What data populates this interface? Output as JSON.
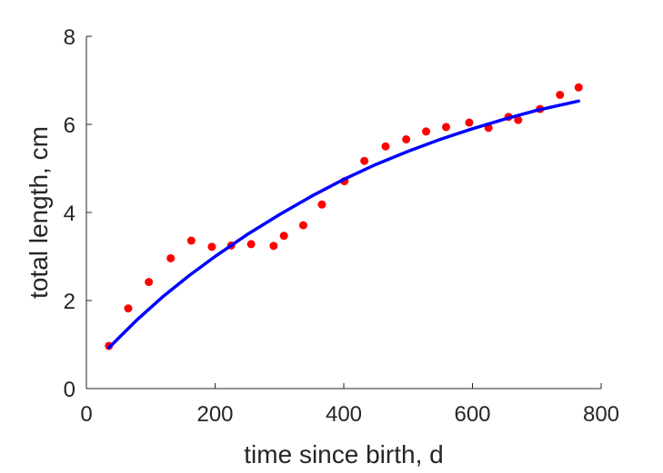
{
  "chart_data": {
    "type": "scatter",
    "title": "",
    "xlabel": "time since birth, d",
    "ylabel": "total length, cm",
    "xlim": [
      0,
      800
    ],
    "ylim": [
      0,
      8
    ],
    "xticks": [
      0,
      200,
      400,
      600,
      800
    ],
    "yticks": [
      0,
      2,
      4,
      6,
      8
    ],
    "xtick_labels": [
      "0",
      "200",
      "400",
      "600",
      "800"
    ],
    "ytick_labels": [
      "0",
      "2",
      "4",
      "6",
      "8"
    ],
    "grid": false,
    "legend": "none",
    "series": [
      {
        "kind": "scatter",
        "color": "#ff0000",
        "x": [
          35,
          65,
          97,
          131,
          163,
          195,
          225,
          256,
          291,
          307,
          337,
          366,
          401,
          432,
          465,
          497,
          528,
          559,
          595,
          625,
          656,
          671,
          705,
          736,
          765
        ],
        "y": [
          0.97,
          1.82,
          2.42,
          2.96,
          3.36,
          3.22,
          3.25,
          3.28,
          3.24,
          3.47,
          3.71,
          4.18,
          4.71,
          5.17,
          5.5,
          5.66,
          5.84,
          5.94,
          6.04,
          5.92,
          6.17,
          6.1,
          6.35,
          6.67,
          6.84
        ]
      },
      {
        "kind": "line",
        "color": "#0000ff",
        "x": [
          35,
          80,
          120,
          160,
          200,
          250,
          300,
          350,
          400,
          450,
          500,
          550,
          600,
          650,
          700,
          765
        ],
        "y": [
          0.93,
          1.58,
          2.1,
          2.57,
          3.0,
          3.5,
          3.95,
          4.37,
          4.75,
          5.09,
          5.39,
          5.66,
          5.9,
          6.12,
          6.32,
          6.53
        ]
      }
    ]
  }
}
